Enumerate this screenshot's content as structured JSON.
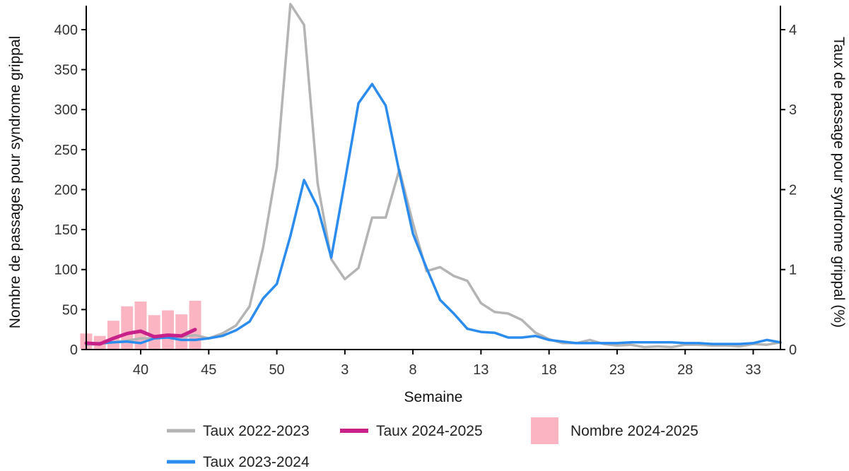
{
  "chart_data": {
    "type": "line",
    "xlabel": "Semaine",
    "ylabel_left": "Nombre de passages pour syndrome grippal",
    "ylabel_right": "Taux de passage pour syndrome grippal (%)",
    "weeks": [
      36,
      37,
      38,
      39,
      40,
      41,
      42,
      43,
      44,
      45,
      46,
      47,
      48,
      49,
      50,
      51,
      52,
      1,
      2,
      3,
      4,
      5,
      6,
      7,
      8,
      9,
      10,
      11,
      12,
      13,
      14,
      15,
      16,
      17,
      18,
      19,
      20,
      21,
      22,
      23,
      24,
      25,
      26,
      27,
      28,
      29,
      30,
      31,
      32,
      33,
      34,
      35
    ],
    "x_ticks": [
      {
        "label": "40",
        "week_index": 4
      },
      {
        "label": "45",
        "week_index": 9
      },
      {
        "label": "50",
        "week_index": 14
      },
      {
        "label": "3",
        "week_index": 19
      },
      {
        "label": "8",
        "week_index": 24
      },
      {
        "label": "13",
        "week_index": 29
      },
      {
        "label": "18",
        "week_index": 34
      },
      {
        "label": "23",
        "week_index": 39
      },
      {
        "label": "28",
        "week_index": 44
      },
      {
        "label": "33",
        "week_index": 49
      }
    ],
    "left_axis": {
      "ylim": [
        0,
        430
      ],
      "ticks": [
        0,
        50,
        100,
        150,
        200,
        250,
        300,
        350,
        400
      ]
    },
    "right_axis": {
      "ylim": [
        0,
        4.3
      ],
      "ticks": [
        0,
        1,
        2,
        3,
        4
      ]
    },
    "bars": {
      "name": "Nombre 2024-2025",
      "color": "#fbb4c1",
      "axis": "left",
      "values": [
        20,
        17,
        36,
        54,
        60,
        43,
        49,
        44,
        61
      ]
    },
    "series": [
      {
        "name": "Taux 2022-2023",
        "color": "#b4b4b4",
        "axis": "right",
        "values": [
          0.06,
          0.07,
          0.09,
          0.11,
          0.14,
          0.14,
          0.16,
          0.16,
          0.18,
          0.14,
          0.2,
          0.3,
          0.54,
          1.28,
          2.28,
          4.32,
          4.06,
          2.08,
          1.13,
          0.88,
          1.02,
          1.65,
          1.65,
          2.25,
          1.58,
          0.98,
          1.03,
          0.92,
          0.86,
          0.58,
          0.47,
          0.45,
          0.37,
          0.21,
          0.13,
          0.08,
          0.08,
          0.12,
          0.07,
          0.05,
          0.06,
          0.03,
          0.04,
          0.03,
          0.06,
          0.06,
          0.05,
          0.05,
          0.04,
          0.07,
          0.06,
          0.09
        ]
      },
      {
        "name": "Taux 2023-2024",
        "color": "#2b8cee",
        "axis": "right",
        "values": [
          0.07,
          0.08,
          0.09,
          0.1,
          0.08,
          0.14,
          0.15,
          0.12,
          0.12,
          0.14,
          0.17,
          0.24,
          0.35,
          0.64,
          0.82,
          1.42,
          2.12,
          1.78,
          1.15,
          2.1,
          3.08,
          3.32,
          3.05,
          2.22,
          1.45,
          1.02,
          0.62,
          0.45,
          0.26,
          0.22,
          0.21,
          0.15,
          0.15,
          0.17,
          0.12,
          0.1,
          0.08,
          0.08,
          0.08,
          0.08,
          0.09,
          0.09,
          0.09,
          0.09,
          0.08,
          0.08,
          0.07,
          0.07,
          0.07,
          0.08,
          0.12,
          0.09
        ]
      },
      {
        "name": "Taux 2024-2025",
        "color": "#c8228a",
        "axis": "right",
        "values": [
          0.08,
          0.07,
          0.14,
          0.2,
          0.23,
          0.16,
          0.18,
          0.17,
          0.25
        ]
      }
    ],
    "legend": {
      "placement": "bottom",
      "entries": [
        "Taux 2022-2023",
        "Taux 2024-2025",
        "Nombre 2024-2025",
        "Taux 2023-2024"
      ]
    }
  }
}
